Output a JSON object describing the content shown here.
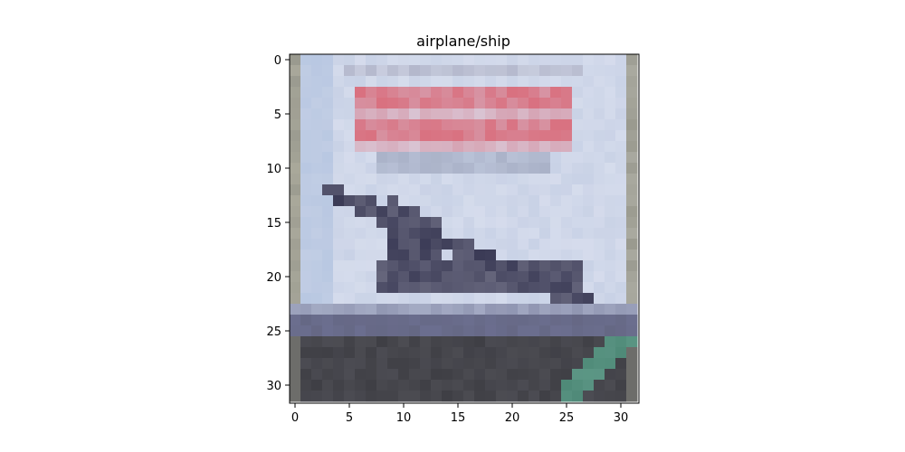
{
  "figure": {
    "title": "airplane/ship"
  },
  "axes": {
    "x_tick_labels": [
      "0",
      "5",
      "10",
      "15",
      "20",
      "25",
      "30"
    ],
    "y_tick_labels": [
      "0",
      "5",
      "10",
      "15",
      "20",
      "25",
      "30"
    ]
  },
  "image": {
    "description_grid_size": 32,
    "scene": "pixelated low-resolution photo of an aircraft with a red text banner above it, grey runway at the bottom and a green stripe in the lower-right corner"
  },
  "colors": {
    "sky": "#c9d2e6",
    "sky_light": "#dde2f0",
    "banner_red": "#d9707f",
    "banner_pink": "#d6a4b4",
    "plane_dark": "#3a3a55",
    "plane_mid": "#6a6a80",
    "ground_dark": "#3f3f45",
    "ground_blue": "#6c6f90",
    "stripe_green": "#4f8a78",
    "border_grey": "#9a9a8f"
  }
}
